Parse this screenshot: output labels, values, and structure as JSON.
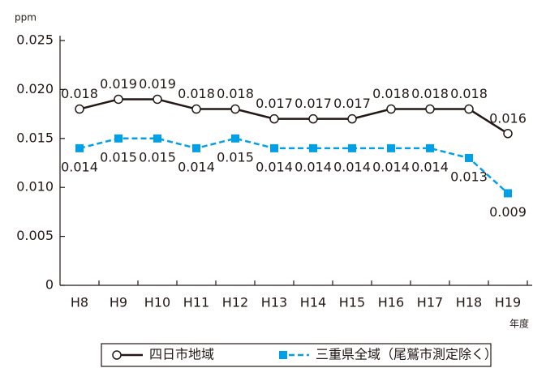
{
  "chart_data": {
    "type": "line",
    "y_label": "ppm",
    "x_label": "年度",
    "categories": [
      "H8",
      "H9",
      "H10",
      "H11",
      "H12",
      "H13",
      "H14",
      "H15",
      "H16",
      "H17",
      "H18",
      "H19"
    ],
    "series": [
      {
        "name": "四日市地域",
        "color": "#231815",
        "marker": "circle",
        "dash": false,
        "values": [
          0.018,
          0.019,
          0.019,
          0.018,
          0.018,
          0.017,
          0.017,
          0.017,
          0.018,
          0.018,
          0.018,
          0.0155
        ],
        "value_labels": [
          "0.018",
          "0.019",
          "0.019",
          "0.018",
          "0.018",
          "0.017",
          "0.017",
          "0.017",
          "0.018",
          "0.018",
          "0.018",
          "0.016"
        ]
      },
      {
        "name": "三重県全域（尾鷲市測定除く）",
        "color": "#00a0e9",
        "marker": "square",
        "dash": true,
        "values": [
          0.014,
          0.015,
          0.015,
          0.014,
          0.015,
          0.014,
          0.014,
          0.014,
          0.014,
          0.014,
          0.013,
          0.0094
        ],
        "value_labels": [
          "0.014",
          "0.015",
          "0.015",
          "0.014",
          "0.015",
          "0.014",
          "0.014",
          "0.014",
          "0.014",
          "0.014",
          "0.013",
          "0.009"
        ]
      }
    ],
    "ylim": [
      0,
      0.025
    ],
    "yticks": [
      0,
      {
        "value": 0.005,
        "label": "0.005"
      },
      {
        "value": 0.01,
        "label": "0.010"
      },
      {
        "value": 0.015,
        "label": "0.015"
      },
      {
        "value": 0.02,
        "label": "0.020"
      },
      {
        "value": 0.025,
        "label": "0.025"
      }
    ],
    "grid": false,
    "legend": "bottom"
  }
}
